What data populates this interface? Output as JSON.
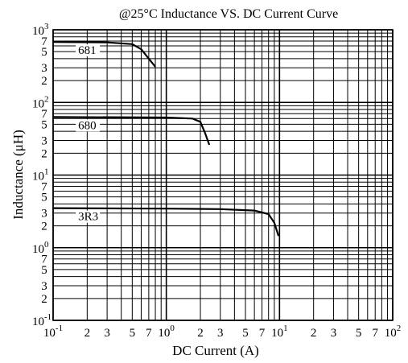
{
  "chart_data": {
    "type": "line",
    "title": "@25°C Inductance VS. DC Current Curve",
    "xlabel": "DC Current (A)",
    "ylabel": "Inductance (μH)",
    "x_scale": "log",
    "y_scale": "log",
    "xlim": [
      0.1,
      100
    ],
    "ylim": [
      0.1,
      1000
    ],
    "grid": true,
    "legend": "none",
    "x_ticks": [
      {
        "value": 0.1,
        "base": "10",
        "exp": "-1"
      },
      {
        "value": 0.2,
        "label": "2"
      },
      {
        "value": 0.3,
        "label": "3"
      },
      {
        "value": 0.5,
        "label": "5"
      },
      {
        "value": 0.7,
        "label": "7"
      },
      {
        "value": 1,
        "base": "10",
        "exp": "0"
      },
      {
        "value": 2,
        "label": "2"
      },
      {
        "value": 3,
        "label": "3"
      },
      {
        "value": 5,
        "label": "5"
      },
      {
        "value": 7,
        "label": "7"
      },
      {
        "value": 10,
        "base": "10",
        "exp": "1"
      },
      {
        "value": 20,
        "label": "2"
      },
      {
        "value": 30,
        "label": "3"
      },
      {
        "value": 50,
        "label": "5"
      },
      {
        "value": 70,
        "label": "7"
      },
      {
        "value": 100,
        "base": "10",
        "exp": "2"
      }
    ],
    "y_ticks": [
      {
        "value": 0.1,
        "base": "10",
        "exp": "-1"
      },
      {
        "value": 0.2,
        "label": "2"
      },
      {
        "value": 0.3,
        "label": "3"
      },
      {
        "value": 0.5,
        "label": "5"
      },
      {
        "value": 0.7,
        "label": "7"
      },
      {
        "value": 1,
        "base": "10",
        "exp": "0"
      },
      {
        "value": 2,
        "label": "2"
      },
      {
        "value": 3,
        "label": "3"
      },
      {
        "value": 5,
        "label": "5"
      },
      {
        "value": 7,
        "label": "7"
      },
      {
        "value": 10,
        "base": "10",
        "exp": "1"
      },
      {
        "value": 20,
        "label": "2"
      },
      {
        "value": 30,
        "label": "3"
      },
      {
        "value": 50,
        "label": "5"
      },
      {
        "value": 70,
        "label": "7"
      },
      {
        "value": 100,
        "base": "10",
        "exp": "2"
      },
      {
        "value": 200,
        "label": "2"
      },
      {
        "value": 300,
        "label": "3"
      },
      {
        "value": 500,
        "label": "5"
      },
      {
        "value": 700,
        "label": "7"
      },
      {
        "value": 1000,
        "base": "10",
        "exp": "3"
      }
    ],
    "series": [
      {
        "name": "681",
        "points": [
          [
            0.1,
            680
          ],
          [
            0.3,
            670
          ],
          [
            0.5,
            635
          ],
          [
            0.6,
            540
          ],
          [
            0.7,
            400
          ],
          [
            0.8,
            310
          ]
        ]
      },
      {
        "name": "680",
        "points": [
          [
            0.1,
            63
          ],
          [
            1.0,
            62
          ],
          [
            1.7,
            60
          ],
          [
            2.0,
            54
          ],
          [
            2.2,
            38
          ],
          [
            2.4,
            26
          ]
        ]
      },
      {
        "name": "3R3",
        "points": [
          [
            0.1,
            3.5
          ],
          [
            1.0,
            3.45
          ],
          [
            3.0,
            3.4
          ],
          [
            6.0,
            3.25
          ],
          [
            8.0,
            2.9
          ],
          [
            9.0,
            2.2
          ],
          [
            9.8,
            1.45
          ]
        ]
      }
    ]
  }
}
